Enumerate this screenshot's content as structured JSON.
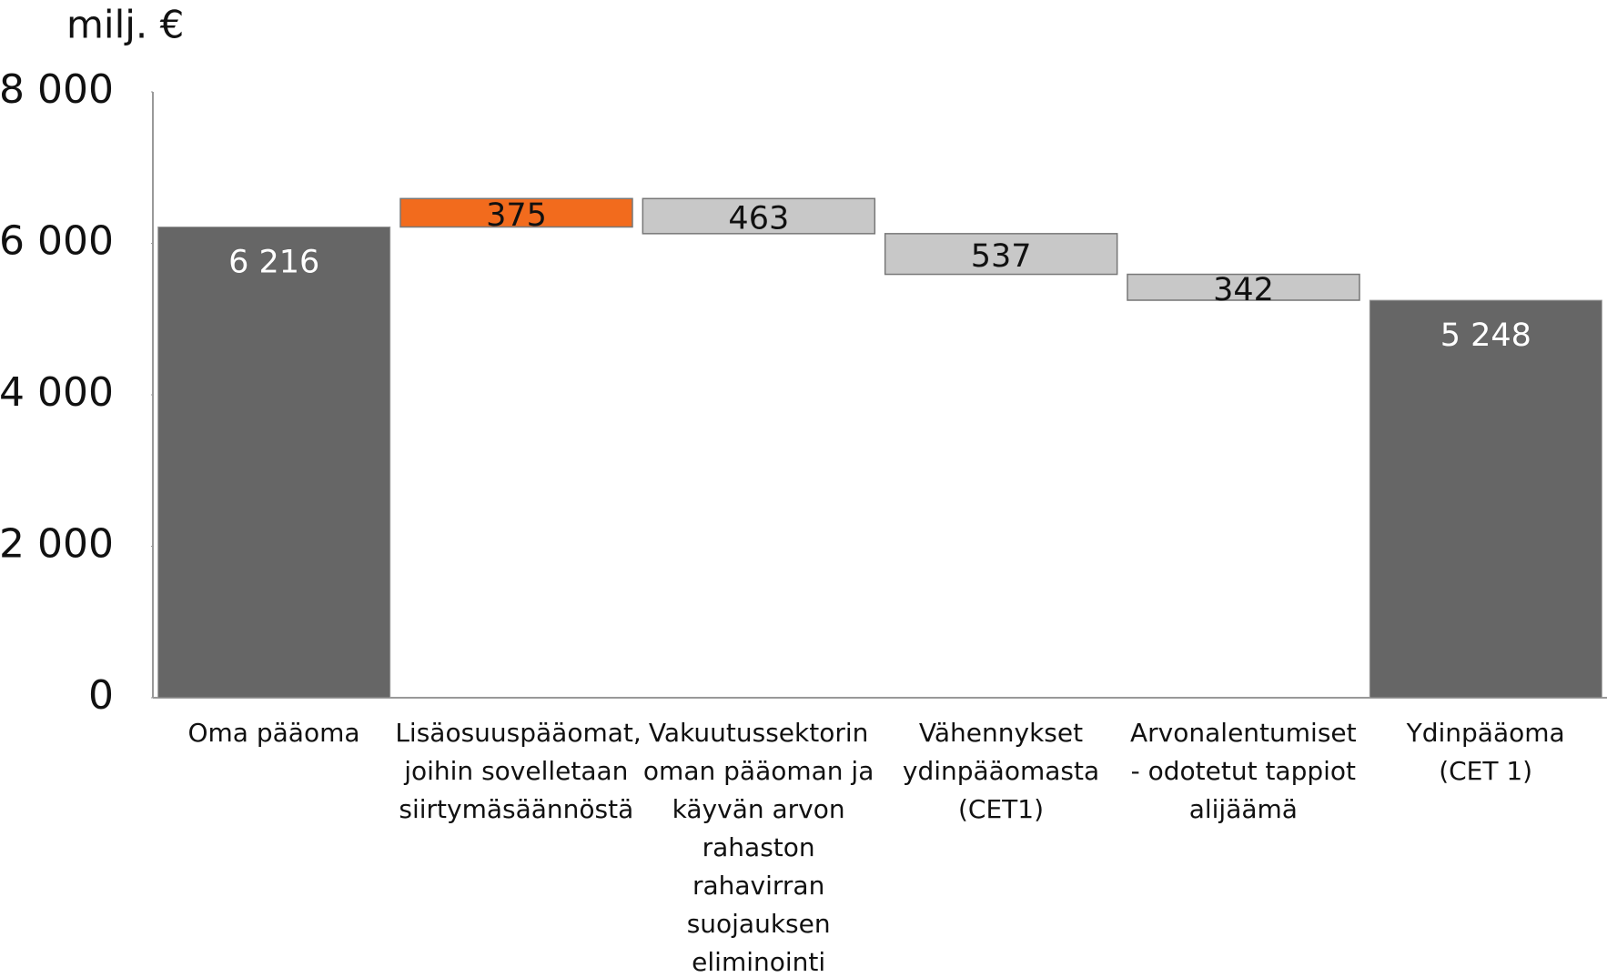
{
  "chart_data": {
    "type": "waterfall",
    "y_label": "milj. €",
    "categories": [
      "Oma pääoma",
      "Lisäosuuspääomat,\njoihin sovelletaan\nsiirtymäsäännöstä",
      "Vakuutussektorin\noman pääoman ja\nkäyvän arvon\nrahaston\nrahavirran\nsuojauksen\neliminointi",
      "Vähennykset\nydinpääomasta\n(CET1)",
      "Arvonalentumiset\n- odotetut tappiot\nalijäämä",
      "Ydinpääoma\n(CET 1)"
    ],
    "values": [
      6216,
      375,
      463,
      537,
      342,
      5248
    ],
    "value_labels": [
      "6 216",
      "375",
      "463",
      "537",
      "342",
      "5 248"
    ],
    "measure": [
      "total",
      "increase",
      "decrease",
      "decrease",
      "decrease",
      "total"
    ],
    "colors": [
      "#666666",
      "#f26b1d",
      "#c8c8c8",
      "#c8c8c8",
      "#c8c8c8",
      "#666666"
    ],
    "ylim": [
      0,
      8000
    ],
    "yticks": [
      {
        "value": 0,
        "label": "0"
      },
      {
        "value": 2000,
        "label": "2 000"
      },
      {
        "value": 4000,
        "label": "4 000"
      },
      {
        "value": 6000,
        "label": "6 000"
      },
      {
        "value": 8000,
        "label": "8 000"
      }
    ],
    "grid": false
  }
}
